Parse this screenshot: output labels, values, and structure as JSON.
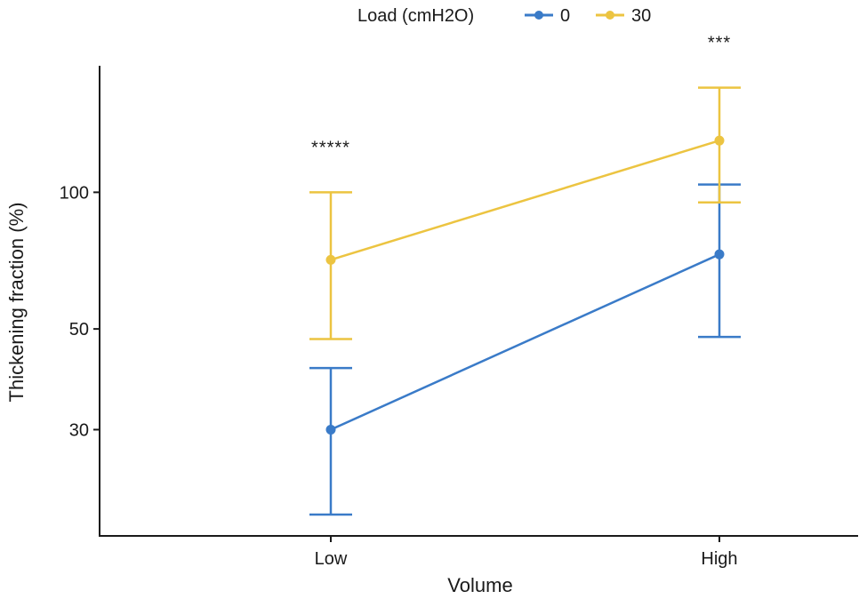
{
  "chart_data": {
    "type": "line",
    "title": "",
    "xlabel": "Volume",
    "ylabel": "Thickening fraction (%)",
    "yscale": "log",
    "ylim": [
      17.5,
      190
    ],
    "yticks": [
      30,
      50,
      100
    ],
    "categories": [
      "Low",
      "High"
    ],
    "legend": {
      "title": "Load (cmH2O)",
      "position": "top"
    },
    "series": [
      {
        "name": "0",
        "color": "#3a7bc8",
        "values": [
          30,
          73
        ],
        "lower": [
          19.5,
          48
        ],
        "upper": [
          41,
          104
        ]
      },
      {
        "name": "30",
        "color": "#ecc441",
        "values": [
          71,
          130
        ],
        "lower": [
          47.5,
          95
        ],
        "upper": [
          100,
          170
        ]
      }
    ],
    "annotations": [
      {
        "category": "Low",
        "text": "*****"
      },
      {
        "category": "High",
        "text": "***"
      }
    ],
    "grid": false
  }
}
